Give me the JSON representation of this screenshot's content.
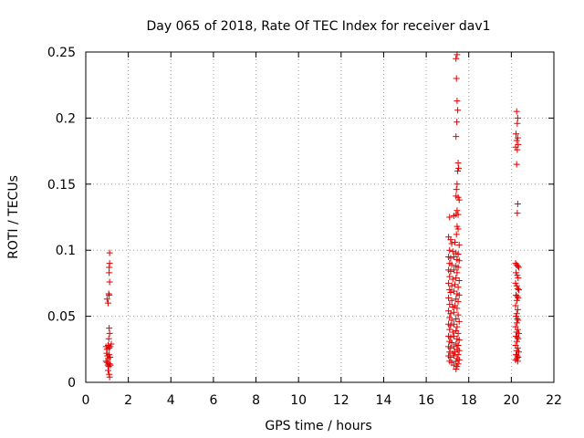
{
  "chart_data": {
    "type": "scatter",
    "title": "Day 065 of 2018, Rate Of TEC Index for receiver dav1",
    "xlabel": "GPS time / hours",
    "ylabel": "ROTI / TECUs",
    "xlim": [
      0,
      22
    ],
    "ylim": [
      0,
      0.25
    ],
    "x_ticks": [
      0,
      2,
      4,
      6,
      8,
      10,
      12,
      14,
      16,
      18,
      20,
      22
    ],
    "y_ticks": [
      0,
      0.05,
      0.1,
      0.15,
      0.2,
      0.25
    ],
    "x_tick_labels": [
      "0",
      "2",
      "4",
      "6",
      "8",
      "10",
      "12",
      "14",
      "16",
      "18",
      "20",
      "22"
    ],
    "y_tick_labels": [
      "0",
      "0.05",
      "0.1",
      "0.15",
      "0.2",
      "0.25"
    ],
    "grid": true,
    "marker": "+",
    "marker_color": "#e00000",
    "series": [
      {
        "points": [
          [
            1.0,
            0.063
          ],
          [
            1.05,
            0.06
          ],
          [
            1.08,
            0.067
          ],
          [
            1.1,
            0.066
          ],
          [
            1.12,
            0.098
          ],
          [
            1.12,
            0.09
          ],
          [
            1.1,
            0.087
          ],
          [
            1.1,
            0.083
          ],
          [
            1.12,
            0.076
          ],
          [
            1.1,
            0.041
          ],
          [
            1.12,
            0.037
          ],
          [
            1.08,
            0.033
          ],
          [
            0.95,
            0.027
          ],
          [
            1.0,
            0.025
          ],
          [
            1.05,
            0.028
          ],
          [
            1.1,
            0.026
          ],
          [
            1.15,
            0.027
          ],
          [
            1.2,
            0.029
          ],
          [
            0.98,
            0.022
          ],
          [
            1.02,
            0.02
          ],
          [
            1.06,
            0.018
          ],
          [
            1.1,
            0.021
          ],
          [
            1.14,
            0.019
          ],
          [
            0.95,
            0.016
          ],
          [
            1.0,
            0.015
          ],
          [
            1.04,
            0.013
          ],
          [
            1.08,
            0.012
          ],
          [
            1.12,
            0.014
          ],
          [
            1.16,
            0.013
          ],
          [
            1.05,
            0.009
          ],
          [
            1.1,
            0.006
          ],
          [
            1.12,
            0.004
          ],
          [
            17.45,
            0.248
          ],
          [
            17.4,
            0.245
          ],
          [
            17.42,
            0.23
          ],
          [
            17.45,
            0.213
          ],
          [
            17.48,
            0.206
          ],
          [
            17.44,
            0.197
          ],
          [
            17.4,
            0.186
          ],
          [
            17.5,
            0.166
          ],
          [
            17.48,
            0.16
          ],
          [
            17.52,
            0.162
          ],
          [
            17.45,
            0.15
          ],
          [
            17.42,
            0.146
          ],
          [
            17.4,
            0.141
          ],
          [
            17.5,
            0.14
          ],
          [
            17.55,
            0.138
          ],
          [
            17.45,
            0.13
          ],
          [
            17.5,
            0.127
          ],
          [
            17.1,
            0.125
          ],
          [
            17.3,
            0.126
          ],
          [
            17.4,
            0.127
          ],
          [
            17.45,
            0.118
          ],
          [
            17.5,
            0.116
          ],
          [
            17.42,
            0.112
          ],
          [
            17.05,
            0.11
          ],
          [
            17.15,
            0.108
          ],
          [
            17.2,
            0.105
          ],
          [
            17.35,
            0.106
          ],
          [
            17.55,
            0.104
          ],
          [
            17.1,
            0.1
          ],
          [
            17.25,
            0.099
          ],
          [
            17.4,
            0.098
          ],
          [
            17.5,
            0.097
          ],
          [
            17.05,
            0.095
          ],
          [
            17.15,
            0.094
          ],
          [
            17.3,
            0.095
          ],
          [
            17.45,
            0.093
          ],
          [
            17.55,
            0.092
          ],
          [
            17.1,
            0.09
          ],
          [
            17.2,
            0.089
          ],
          [
            17.4,
            0.088
          ],
          [
            17.5,
            0.087
          ],
          [
            17.05,
            0.085
          ],
          [
            17.15,
            0.084
          ],
          [
            17.3,
            0.085
          ],
          [
            17.45,
            0.083
          ],
          [
            17.1,
            0.08
          ],
          [
            17.25,
            0.078
          ],
          [
            17.4,
            0.079
          ],
          [
            17.55,
            0.077
          ],
          [
            17.05,
            0.075
          ],
          [
            17.2,
            0.073
          ],
          [
            17.35,
            0.074
          ],
          [
            17.5,
            0.072
          ],
          [
            17.1,
            0.07
          ],
          [
            17.15,
            0.068
          ],
          [
            17.3,
            0.069
          ],
          [
            17.45,
            0.067
          ],
          [
            17.55,
            0.066
          ],
          [
            17.05,
            0.064
          ],
          [
            17.2,
            0.062
          ],
          [
            17.4,
            0.063
          ],
          [
            17.5,
            0.061
          ],
          [
            17.1,
            0.059
          ],
          [
            17.25,
            0.057
          ],
          [
            17.35,
            0.058
          ],
          [
            17.45,
            0.056
          ],
          [
            17.05,
            0.054
          ],
          [
            17.15,
            0.052
          ],
          [
            17.3,
            0.053
          ],
          [
            17.5,
            0.051
          ],
          [
            17.1,
            0.049
          ],
          [
            17.2,
            0.047
          ],
          [
            17.4,
            0.048
          ],
          [
            17.55,
            0.046
          ],
          [
            17.05,
            0.044
          ],
          [
            17.15,
            0.043
          ],
          [
            17.3,
            0.044
          ],
          [
            17.45,
            0.042
          ],
          [
            17.1,
            0.04
          ],
          [
            17.25,
            0.038
          ],
          [
            17.4,
            0.039
          ],
          [
            17.5,
            0.037
          ],
          [
            17.05,
            0.035
          ],
          [
            17.15,
            0.034
          ],
          [
            17.3,
            0.035
          ],
          [
            17.45,
            0.033
          ],
          [
            17.55,
            0.032
          ],
          [
            17.1,
            0.031
          ],
          [
            17.2,
            0.03
          ],
          [
            17.4,
            0.029
          ],
          [
            17.5,
            0.028
          ],
          [
            17.05,
            0.027
          ],
          [
            17.15,
            0.026
          ],
          [
            17.3,
            0.027
          ],
          [
            17.45,
            0.025
          ],
          [
            17.55,
            0.024
          ],
          [
            17.1,
            0.023
          ],
          [
            17.25,
            0.022
          ],
          [
            17.35,
            0.023
          ],
          [
            17.5,
            0.021
          ],
          [
            17.05,
            0.02
          ],
          [
            17.15,
            0.019
          ],
          [
            17.3,
            0.02
          ],
          [
            17.45,
            0.018
          ],
          [
            17.55,
            0.017
          ],
          [
            17.1,
            0.016
          ],
          [
            17.2,
            0.015
          ],
          [
            17.4,
            0.016
          ],
          [
            17.5,
            0.014
          ],
          [
            17.3,
            0.013
          ],
          [
            17.45,
            0.012
          ],
          [
            17.4,
            0.01
          ],
          [
            20.25,
            0.205
          ],
          [
            20.3,
            0.2
          ],
          [
            20.28,
            0.196
          ],
          [
            20.22,
            0.188
          ],
          [
            20.3,
            0.185
          ],
          [
            20.25,
            0.183
          ],
          [
            20.32,
            0.18
          ],
          [
            20.2,
            0.178
          ],
          [
            20.28,
            0.176
          ],
          [
            20.25,
            0.165
          ],
          [
            20.3,
            0.135
          ],
          [
            20.28,
            0.128
          ],
          [
            20.2,
            0.09
          ],
          [
            20.25,
            0.089
          ],
          [
            20.3,
            0.088
          ],
          [
            20.35,
            0.087
          ],
          [
            20.22,
            0.083
          ],
          [
            20.28,
            0.081
          ],
          [
            20.32,
            0.079
          ],
          [
            20.2,
            0.075
          ],
          [
            20.25,
            0.073
          ],
          [
            20.3,
            0.071
          ],
          [
            20.35,
            0.07
          ],
          [
            20.22,
            0.066
          ],
          [
            20.28,
            0.065
          ],
          [
            20.32,
            0.064
          ],
          [
            20.26,
            0.062
          ],
          [
            20.2,
            0.058
          ],
          [
            20.3,
            0.055
          ],
          [
            20.25,
            0.052
          ],
          [
            20.22,
            0.05
          ],
          [
            20.28,
            0.048
          ],
          [
            20.32,
            0.047
          ],
          [
            20.26,
            0.045
          ],
          [
            20.2,
            0.042
          ],
          [
            20.3,
            0.04
          ],
          [
            20.25,
            0.038
          ],
          [
            20.35,
            0.037
          ],
          [
            20.22,
            0.035
          ],
          [
            20.28,
            0.034
          ],
          [
            20.32,
            0.033
          ],
          [
            20.26,
            0.031
          ],
          [
            20.2,
            0.028
          ],
          [
            20.3,
            0.026
          ],
          [
            20.25,
            0.024
          ],
          [
            20.35,
            0.023
          ],
          [
            20.22,
            0.021
          ],
          [
            20.28,
            0.02
          ],
          [
            20.32,
            0.019
          ],
          [
            20.26,
            0.018
          ],
          [
            20.2,
            0.017
          ],
          [
            20.3,
            0.016
          ]
        ]
      }
    ]
  }
}
